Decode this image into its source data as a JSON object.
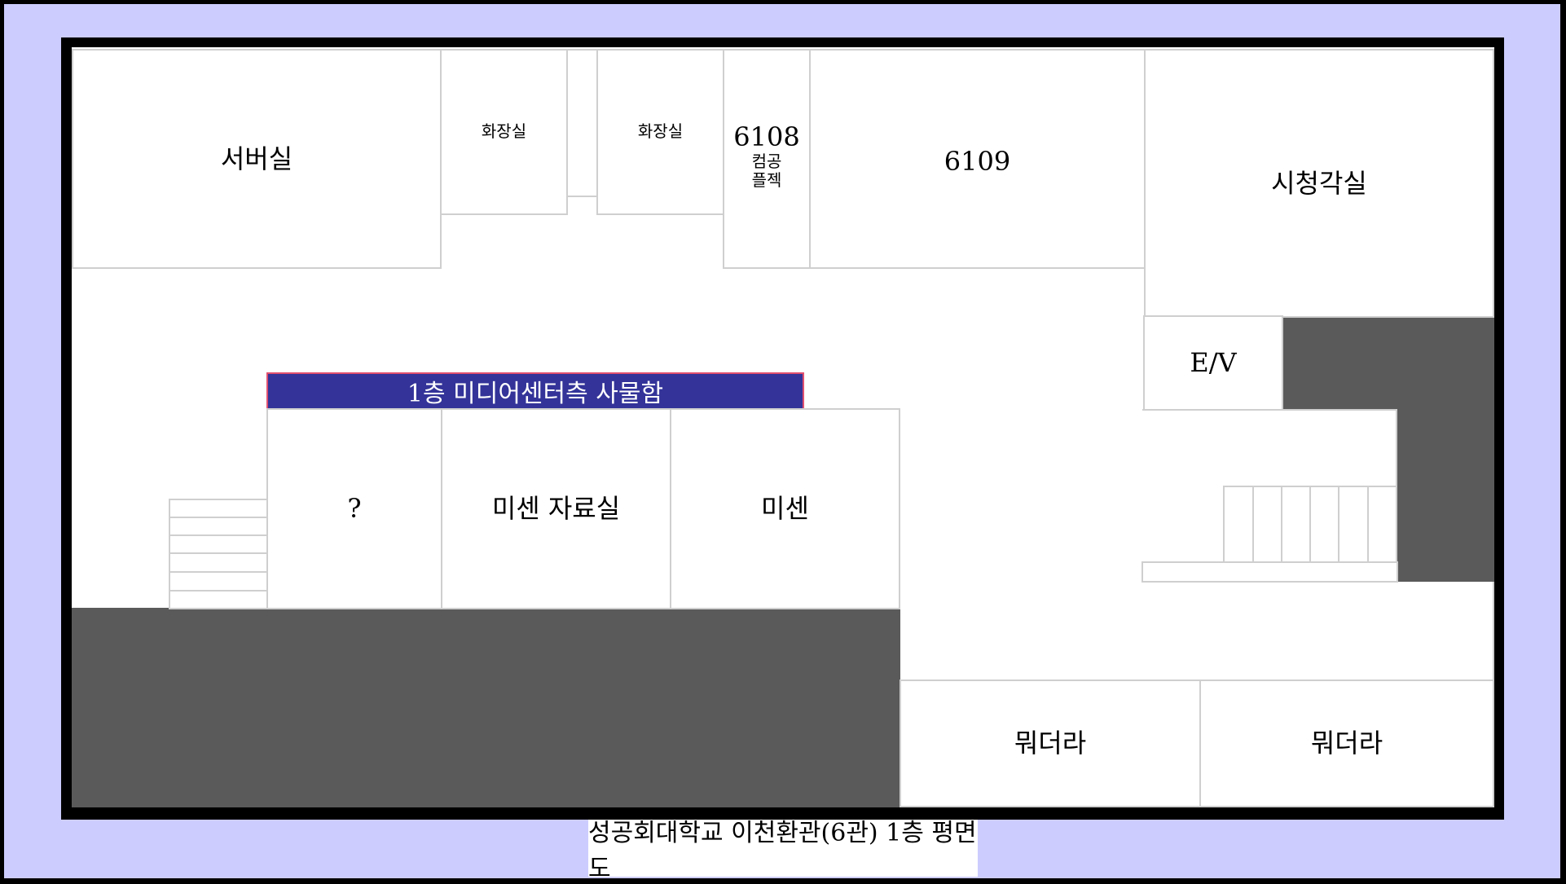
{
  "rooms": {
    "server": "서버실",
    "restroom_1": "화장실",
    "restroom_2": "화장실",
    "room_6108": {
      "number": "6108",
      "line1": "컴공",
      "line2": "플젝"
    },
    "room_6109": "6109",
    "av_room": "시청각실",
    "elevator": "E/V",
    "unknown": "?",
    "misen_archive": "미센 자료실",
    "misen": "미센",
    "unknown_1": "뭐더라",
    "unknown_2": "뭐더라"
  },
  "locker_banner": "1층 미디어센터측 사물함",
  "caption": "성공회대학교 이천환관(6관) 1층 평면도",
  "colors": {
    "background": "#ccccff",
    "wall": "#000000",
    "blocked_area": "#5a5a5a",
    "banner": "#333399",
    "banner_border": "#e05070"
  }
}
